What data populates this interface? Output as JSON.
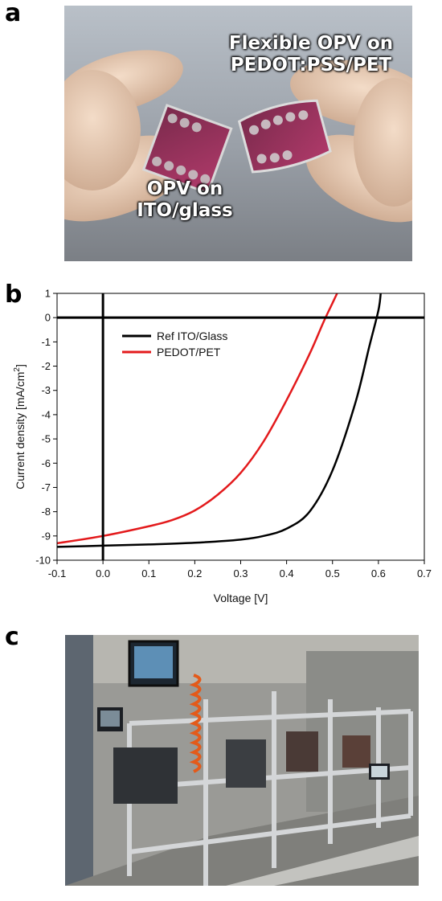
{
  "panels": {
    "a": {
      "letter": "a",
      "captions": {
        "flexible_line1": "Flexible OPV on",
        "flexible_line2": "PEDOT:PSS/PET",
        "ito_line1": "OPV on",
        "ito_line2": "ITO/glass"
      }
    },
    "b": {
      "letter": "b"
    },
    "c": {
      "letter": "c"
    }
  },
  "chart_data": {
    "type": "line",
    "title": "",
    "xlabel": "Voltage [V]",
    "ylabel_main": "Current density [mA/cm",
    "ylabel_sup": "2",
    "ylabel_end": "]",
    "xlim": [
      -0.1,
      0.7
    ],
    "ylim": [
      -10,
      1
    ],
    "xticks": [
      -0.1,
      0.0,
      0.1,
      0.2,
      0.3,
      0.4,
      0.5,
      0.6,
      0.7
    ],
    "xtick_labels": [
      "-0.1",
      "0.0",
      "0.1",
      "0.2",
      "0.3",
      "0.4",
      "0.5",
      "0.6",
      "0.7"
    ],
    "yticks": [
      1,
      0,
      -1,
      -2,
      -3,
      -4,
      -5,
      -6,
      -7,
      -8,
      -9,
      -10
    ],
    "ytick_labels": [
      "1",
      "0",
      "-1",
      "-2",
      "-3",
      "-4",
      "-5",
      "-6",
      "-7",
      "-8",
      "-9",
      "-10"
    ],
    "grid": false,
    "legend_position": "top-left",
    "zero_lines": true,
    "series": [
      {
        "name": "Ref ITO/Glass",
        "color": "#000000",
        "x": [
          -0.1,
          0.0,
          0.1,
          0.2,
          0.3,
          0.35,
          0.4,
          0.45,
          0.5,
          0.55,
          0.58,
          0.6,
          0.605
        ],
        "y": [
          -9.45,
          -9.4,
          -9.35,
          -9.28,
          -9.15,
          -9.0,
          -8.7,
          -8.0,
          -6.3,
          -3.5,
          -1.2,
          0.3,
          1.0
        ]
      },
      {
        "name": "PEDOT/PET",
        "color": "#e31a1c",
        "x": [
          -0.1,
          0.0,
          0.1,
          0.15,
          0.2,
          0.25,
          0.3,
          0.35,
          0.4,
          0.45,
          0.48,
          0.5,
          0.51
        ],
        "y": [
          -9.3,
          -9.0,
          -8.6,
          -8.35,
          -7.95,
          -7.3,
          -6.4,
          -5.1,
          -3.4,
          -1.5,
          -0.2,
          0.6,
          1.0
        ]
      }
    ]
  }
}
